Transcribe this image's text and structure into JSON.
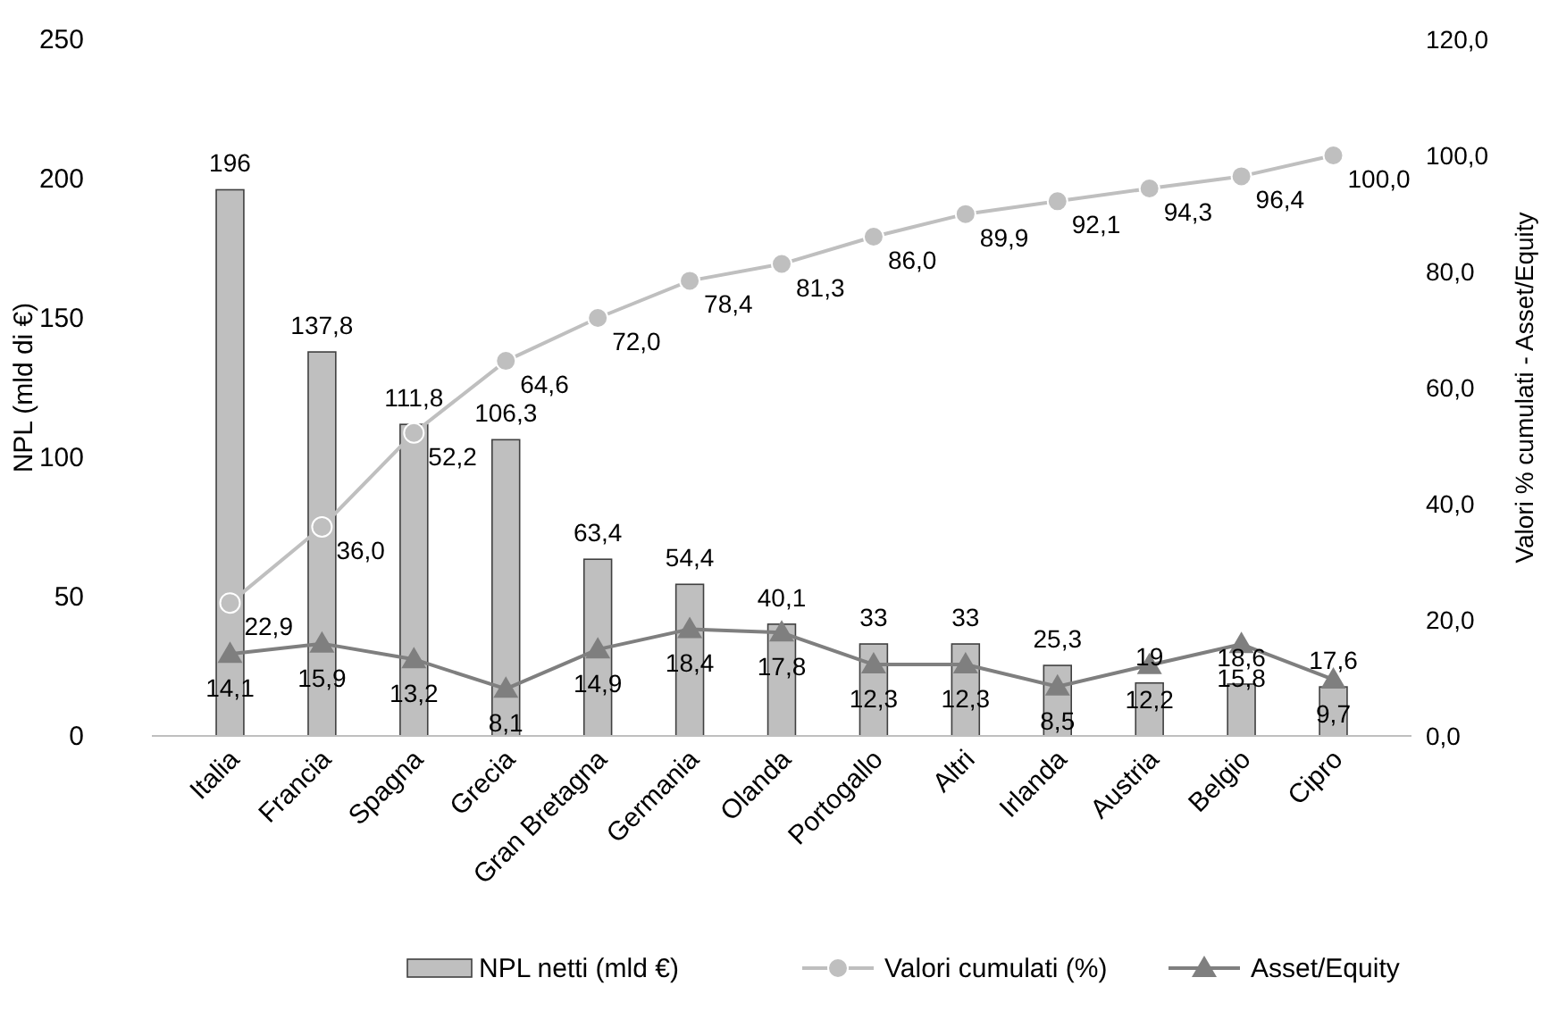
{
  "chart_data": {
    "type": "bar",
    "ylabel": "NPL (mld di €)",
    "y2label": "Valori % cumulati - Asset/Equity",
    "categories": [
      "Italia",
      "Francia",
      "Spagna",
      "Grecia",
      "Gran Bretagna",
      "Germania",
      "Olanda",
      "Portogallo",
      "Altri",
      "Irlanda",
      "Austria",
      "Belgio",
      "Cipro"
    ],
    "series": [
      {
        "name": "NPL netti (mld €)",
        "color": "#bfbfbf",
        "values": [
          196,
          137.8,
          111.8,
          106.3,
          63.4,
          54.4,
          40.1,
          33,
          33,
          25.3,
          19,
          18.6,
          17.6
        ],
        "value_labels": [
          "196",
          "137,8",
          "111,8",
          "106,3",
          "63,4",
          "54,4",
          "40,1",
          "33",
          "33",
          "25,3",
          "19",
          "18,6",
          "17,6"
        ]
      },
      {
        "name": "Valori cumulati (%)",
        "type": "line",
        "axis": "y2",
        "marker": "circle",
        "color": "#bfbfbf",
        "values": [
          22.9,
          36.0,
          52.2,
          64.6,
          72.0,
          78.4,
          81.3,
          86.0,
          89.9,
          92.1,
          94.3,
          96.4,
          100.0
        ],
        "value_labels": [
          "22,9",
          "36,0",
          "52,2",
          "64,6",
          "72,0",
          "78,4",
          "81,3",
          "86,0",
          "89,9",
          "92,1",
          "94,3",
          "96,4",
          "100,0"
        ]
      },
      {
        "name": "Asset/Equity",
        "type": "line",
        "axis": "y2",
        "marker": "triangle",
        "color": "#7f7f7f",
        "values": [
          14.1,
          15.9,
          13.2,
          8.1,
          14.9,
          18.4,
          17.8,
          12.3,
          12.3,
          8.5,
          12.2,
          15.8,
          9.7
        ],
        "value_labels": [
          "14,1",
          "15,9",
          "13,2",
          "8,1",
          "14,9",
          "18,4",
          "17,8",
          "12,3",
          "12,3",
          "8,5",
          "12,2",
          "15,8",
          "9,7"
        ]
      }
    ],
    "ylim": [
      0,
      250
    ],
    "yticks": [
      0,
      50,
      100,
      150,
      200,
      250
    ],
    "y2lim": [
      0,
      120
    ],
    "y2ticks": [
      {
        "value": 0,
        "label": "0,0"
      },
      {
        "value": 20,
        "label": "20,0"
      },
      {
        "value": 40,
        "label": "40,0"
      },
      {
        "value": 60,
        "label": "60,0"
      },
      {
        "value": 80,
        "label": "80,0"
      },
      {
        "value": 100,
        "label": "100,0"
      },
      {
        "value": 120,
        "label": "120,0"
      }
    ],
    "legend": "bottom",
    "grid": false
  }
}
